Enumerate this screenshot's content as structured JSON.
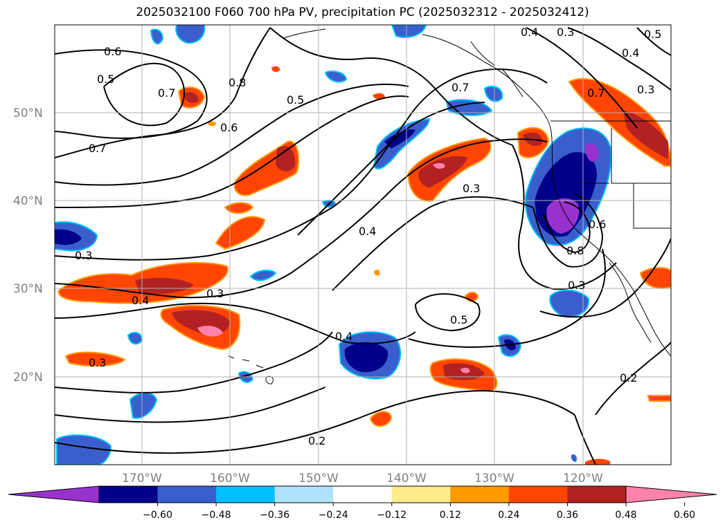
{
  "title": "2025032100 F060 700 hPa PV, precipitation PC (2025032312 - 2025032412)",
  "lat_labels": [
    "50°N",
    "40°N",
    "30°N",
    "20°N"
  ],
  "lon_labels": [
    "170°W",
    "160°W",
    "150°W",
    "140°W",
    "130°W",
    "120°W"
  ],
  "colorbar": {
    "colors": [
      "#9932cc",
      "#00008b",
      "#3a5fcd",
      "#00bfff",
      "#b0e2ff",
      "#ffffff",
      "#ffec8b",
      "#ff9900",
      "#ff4500",
      "#b22222",
      "#ff82ab"
    ],
    "tick_labels": [
      "−0.60",
      "−0.48",
      "−0.36",
      "−0.24",
      "−0.12",
      "0.12",
      "0.24",
      "0.36",
      "0.48",
      "0.60"
    ]
  },
  "contour_labels": [
    "0.6",
    "0.5",
    "0.7",
    "0.8",
    "0.7",
    "0.5",
    "0.6",
    "0.7",
    "0.4",
    "0.3",
    "0.4",
    "0.5",
    "0.7",
    "0.3",
    "0.3",
    "0.4",
    "0.3",
    "0.3",
    "0.4",
    "0.4",
    "0.5",
    "0.3",
    "0.6",
    "0.8",
    "0.3",
    "0.2",
    "0.2"
  ]
}
